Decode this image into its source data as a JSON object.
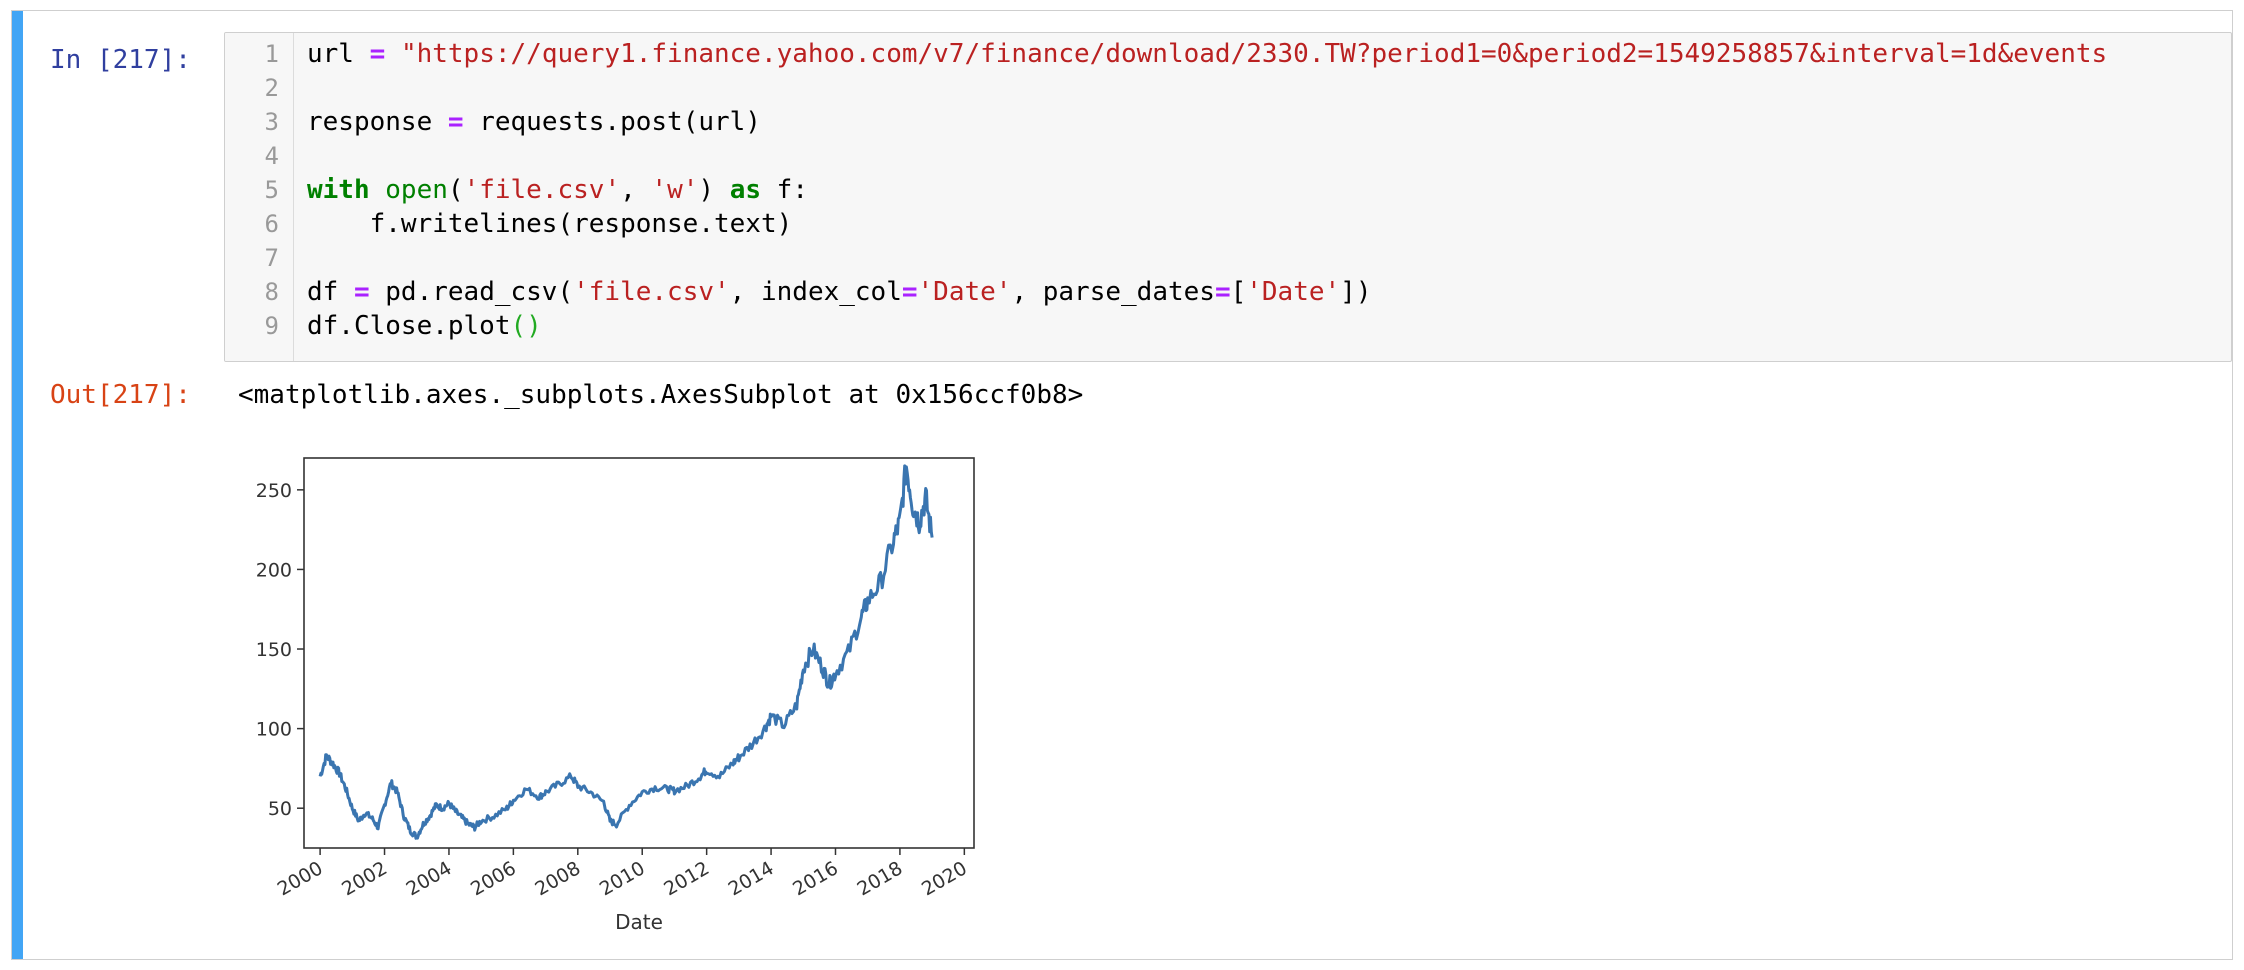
{
  "cell": {
    "in_prompt": "In [217]:",
    "out_prompt": "Out[217]:",
    "code_lines": [
      [
        {
          "t": "url ",
          "c": ""
        },
        {
          "t": "=",
          "c": "op"
        },
        {
          "t": " ",
          "c": ""
        },
        {
          "t": "\"https://query1.finance.yahoo.com/v7/finance/download/2330.TW?period1=0&period2=1549258857&interval=1d&events",
          "c": "str"
        }
      ],
      [],
      [
        {
          "t": "response ",
          "c": ""
        },
        {
          "t": "=",
          "c": "op"
        },
        {
          "t": " requests.post(url)",
          "c": ""
        }
      ],
      [],
      [
        {
          "t": "with",
          "c": "kw"
        },
        {
          "t": " ",
          "c": ""
        },
        {
          "t": "open",
          "c": "bi"
        },
        {
          "t": "(",
          "c": ""
        },
        {
          "t": "'file.csv'",
          "c": "str"
        },
        {
          "t": ", ",
          "c": ""
        },
        {
          "t": "'w'",
          "c": "str"
        },
        {
          "t": ") ",
          "c": ""
        },
        {
          "t": "as",
          "c": "kw"
        },
        {
          "t": " f:",
          "c": ""
        }
      ],
      [
        {
          "t": "    f.writelines(response.text)",
          "c": ""
        }
      ],
      [],
      [
        {
          "t": "df ",
          "c": ""
        },
        {
          "t": "=",
          "c": "op"
        },
        {
          "t": " pd.read_csv(",
          "c": ""
        },
        {
          "t": "'file.csv'",
          "c": "str"
        },
        {
          "t": ", index_col",
          "c": ""
        },
        {
          "t": "=",
          "c": "op"
        },
        {
          "t": "'Date'",
          "c": "str"
        },
        {
          "t": ", parse_dates",
          "c": ""
        },
        {
          "t": "=",
          "c": "op"
        },
        {
          "t": "[",
          "c": ""
        },
        {
          "t": "'Date'",
          "c": "str"
        },
        {
          "t": "])",
          "c": ""
        }
      ],
      [
        {
          "t": "df.Close.plot",
          "c": ""
        },
        {
          "t": "()",
          "c": "paren-green"
        }
      ]
    ],
    "output_text": "<matplotlib.axes._subplots.AxesSubplot at 0x156ccf0b8>"
  },
  "colors": {
    "line": "#3a75b0",
    "cell_bar": "#42a5f5",
    "in_prompt": "#303f9f",
    "out_prompt": "#d84315"
  },
  "chart_data": {
    "type": "line",
    "xlabel": "Date",
    "ylabel": "",
    "xlim": [
      2000,
      2019
    ],
    "ylim": [
      25,
      270
    ],
    "x_ticks": [
      2000,
      2002,
      2004,
      2006,
      2008,
      2010,
      2012,
      2014,
      2016,
      2018,
      2020
    ],
    "y_ticks": [
      50,
      100,
      150,
      200,
      250
    ],
    "x_tick_labels": [
      "2000",
      "2002",
      "2004",
      "2006",
      "2008",
      "2010",
      "2012",
      "2014",
      "2016",
      "2018",
      "2020"
    ],
    "y_tick_labels": [
      "50",
      "100",
      "150",
      "200",
      "250"
    ],
    "series": [
      {
        "x": [
          2000.0,
          2000.2,
          2000.4,
          2000.6,
          2000.8,
          2001.0,
          2001.2,
          2001.4,
          2001.6,
          2001.8,
          2002.0,
          2002.2,
          2002.4,
          2002.6,
          2002.8,
          2003.0,
          2003.2,
          2003.4,
          2003.6,
          2003.8,
          2004.0,
          2004.2,
          2004.4,
          2004.6,
          2004.8,
          2005.0,
          2005.4,
          2005.8,
          2006.0,
          2006.4,
          2006.8,
          2007.0,
          2007.4,
          2007.8,
          2008.0,
          2008.4,
          2008.8,
          2009.0,
          2009.2,
          2009.6,
          2010.0,
          2010.4,
          2010.8,
          2011.0,
          2011.4,
          2011.8,
          2012.0,
          2012.4,
          2012.8,
          2013.0,
          2013.4,
          2013.8,
          2014.0,
          2014.4,
          2014.8,
          2015.0,
          2015.3,
          2015.6,
          2015.8,
          2016.0,
          2016.4,
          2016.8,
          2017.0,
          2017.4,
          2017.8,
          2018.0,
          2018.2,
          2018.4,
          2018.6,
          2018.8,
          2019.0
        ],
        "y": [
          70,
          83,
          78,
          72,
          62,
          50,
          42,
          47,
          44,
          38,
          52,
          66,
          60,
          45,
          36,
          32,
          40,
          45,
          52,
          50,
          53,
          48,
          44,
          40,
          38,
          42,
          45,
          50,
          55,
          62,
          57,
          60,
          65,
          70,
          64,
          60,
          54,
          42,
          40,
          52,
          60,
          63,
          62,
          61,
          64,
          70,
          74,
          70,
          78,
          82,
          90,
          100,
          108,
          102,
          115,
          138,
          150,
          138,
          128,
          135,
          148,
          170,
          180,
          192,
          218,
          230,
          265,
          240,
          230,
          245,
          220
        ]
      }
    ]
  }
}
